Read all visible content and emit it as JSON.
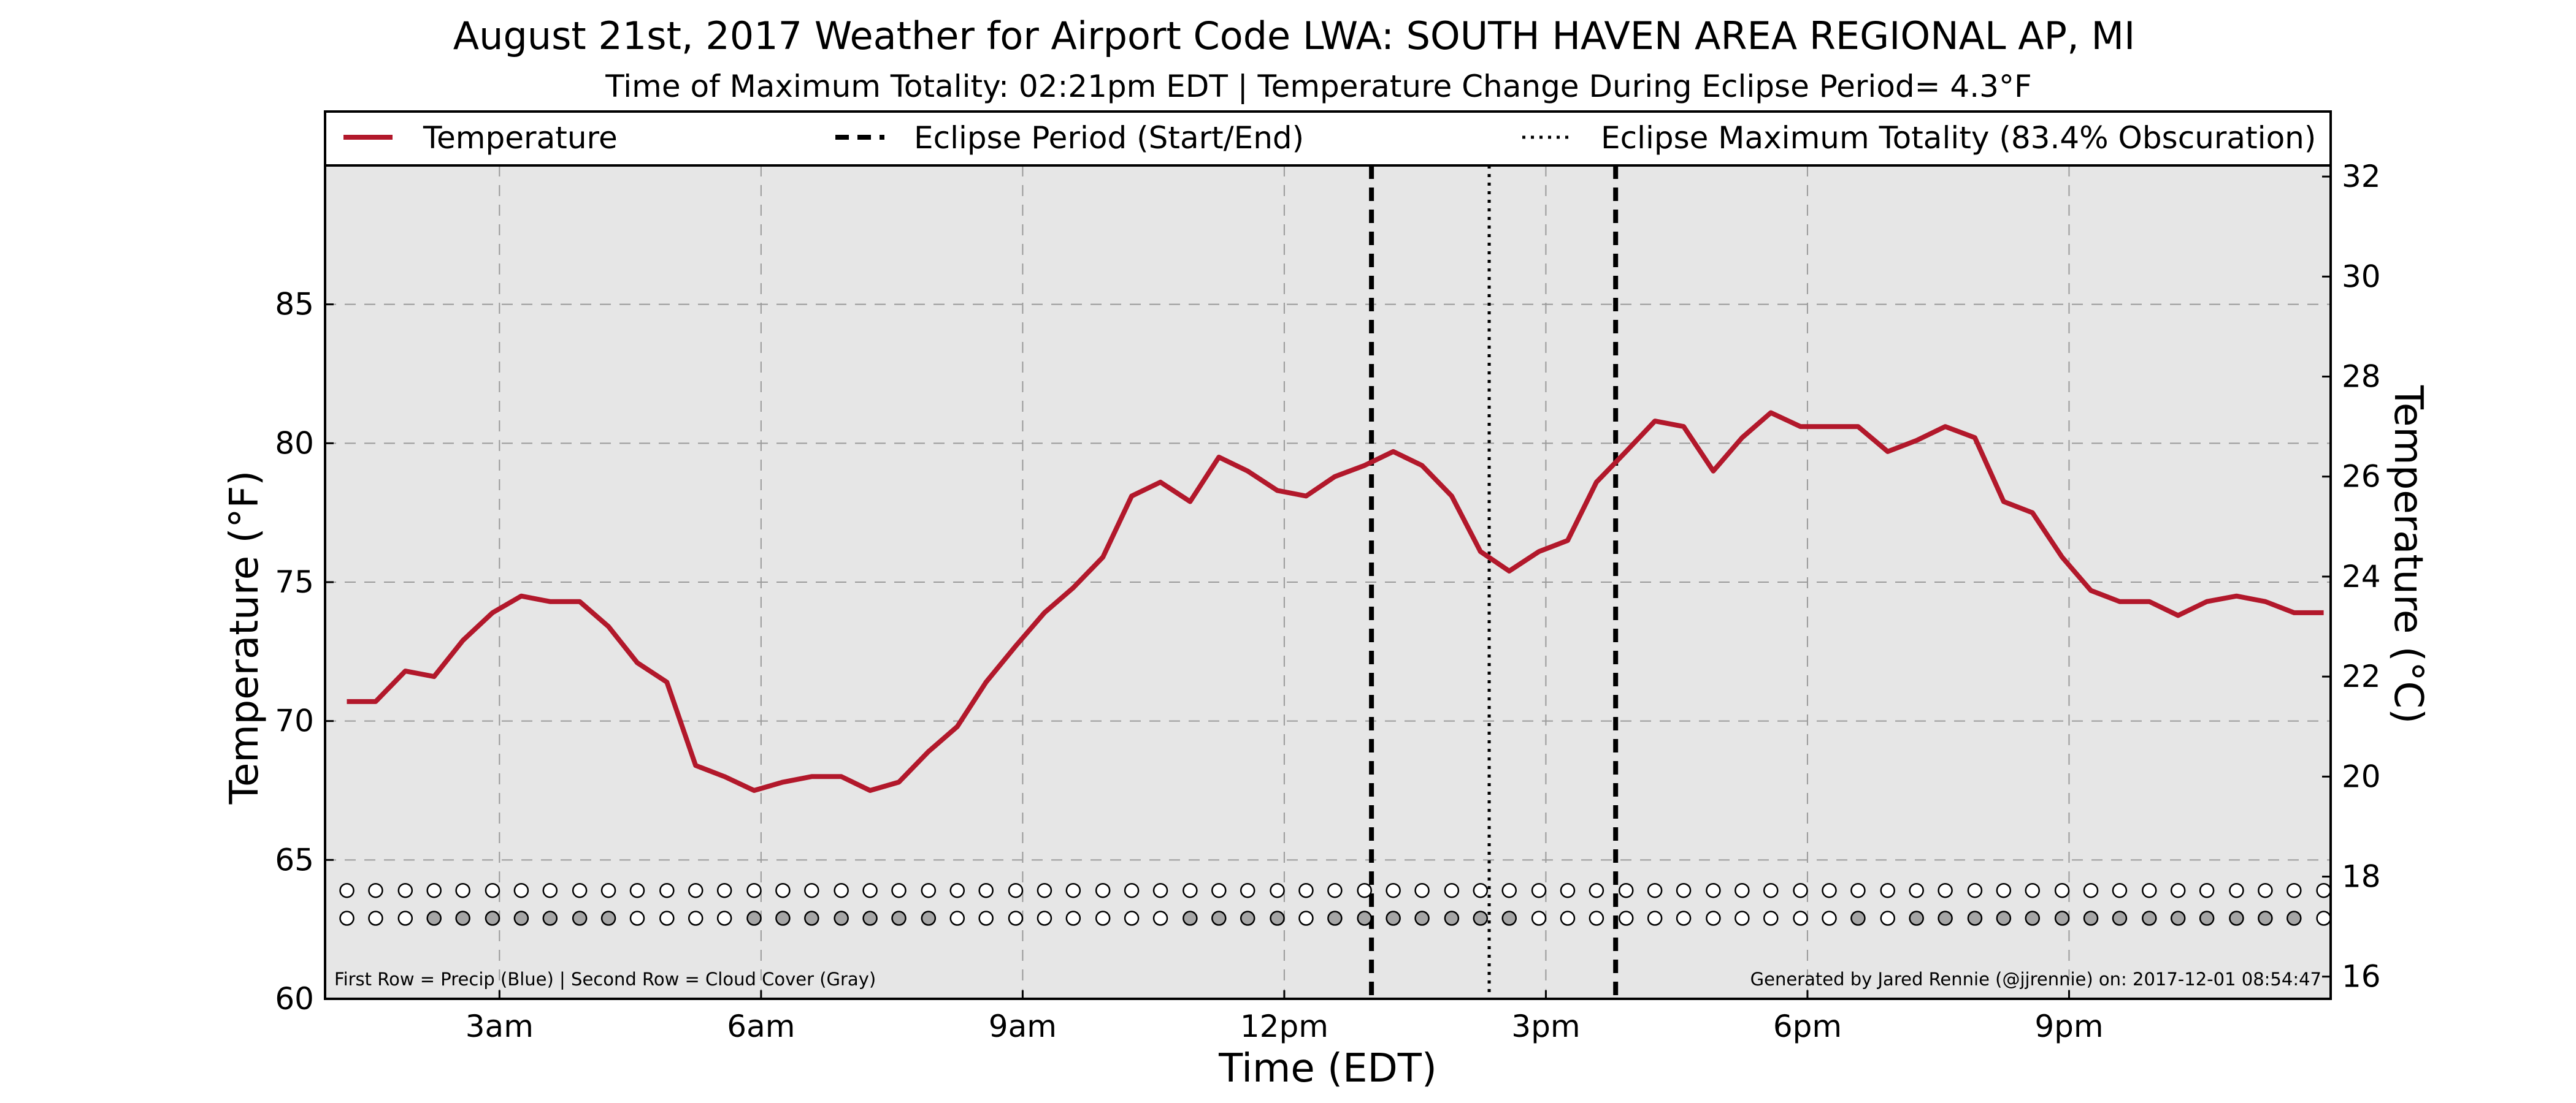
{
  "chart_data": {
    "type": "line",
    "title": "August 21st, 2017 Weather for Airport Code LWA: SOUTH HAVEN AREA REGIONAL AP, MI",
    "subtitle": "Time of Maximum Totality: 02:21pm EDT | Temperature Change During Eclipse Period= 4.3°F",
    "xlabel": "Time (EDT)",
    "ylabel_left": "Temperature (°F)",
    "ylabel_right": "Temperature (°C)",
    "x_unit": "hour of day (EDT)",
    "xlim": [
      1,
      24
    ],
    "x_ticks": [
      {
        "x": 3,
        "label": "3am"
      },
      {
        "x": 6,
        "label": "6am"
      },
      {
        "x": 9,
        "label": "9am"
      },
      {
        "x": 12,
        "label": "12pm"
      },
      {
        "x": 15,
        "label": "3pm"
      },
      {
        "x": 18,
        "label": "6pm"
      },
      {
        "x": 21,
        "label": "9pm"
      }
    ],
    "ylim": [
      60,
      90
    ],
    "y_ticks": [
      60,
      65,
      70,
      75,
      80,
      85
    ],
    "y2_ticks": [
      16,
      18,
      20,
      22,
      24,
      26,
      28,
      30,
      32
    ],
    "grid": true,
    "legend_position": "top (full width, above plot)",
    "legend": {
      "temperature": "Temperature",
      "eclipse_period": "Eclipse Period (Start/End)",
      "max_totality": "Eclipse Maximum Totality (83.4% Obscuration)"
    },
    "eclipse_start": 13.0,
    "eclipse_end": 15.8,
    "max_totality": 14.35,
    "series": [
      {
        "name": "Temperature",
        "color": "#b2182b",
        "x": [
          1.25,
          1.58,
          1.92,
          2.25,
          2.58,
          2.92,
          3.25,
          3.58,
          3.92,
          4.25,
          4.58,
          4.92,
          5.25,
          5.58,
          5.92,
          6.25,
          6.58,
          6.92,
          7.25,
          7.58,
          7.92,
          8.25,
          8.58,
          8.92,
          9.25,
          9.58,
          9.92,
          10.25,
          10.58,
          10.92,
          11.25,
          11.58,
          11.92,
          12.25,
          12.58,
          12.92,
          13.25,
          13.58,
          13.92,
          14.25,
          14.58,
          14.92,
          15.25,
          15.58,
          15.92,
          16.25,
          16.58,
          16.92,
          17.25,
          17.58,
          17.92,
          18.25,
          18.58,
          18.92,
          19.25,
          19.58,
          19.92,
          20.25,
          20.58,
          20.92,
          21.25,
          21.58,
          21.92,
          22.25,
          22.58,
          22.92,
          23.25,
          23.58,
          23.92
        ],
        "values": [
          70.7,
          70.7,
          71.8,
          71.6,
          72.9,
          73.9,
          74.5,
          74.3,
          74.3,
          73.4,
          72.1,
          71.4,
          68.4,
          68.0,
          67.5,
          67.8,
          68.0,
          68.0,
          67.5,
          67.8,
          68.9,
          69.8,
          71.4,
          72.7,
          73.9,
          74.8,
          75.9,
          78.1,
          78.6,
          77.9,
          79.5,
          79.0,
          78.3,
          78.1,
          78.8,
          79.2,
          79.7,
          79.2,
          78.1,
          76.1,
          75.4,
          76.1,
          76.5,
          78.6,
          79.7,
          80.8,
          80.6,
          79.0,
          80.2,
          81.1,
          80.6,
          80.6,
          80.6,
          79.7,
          80.1,
          80.6,
          80.2,
          77.9,
          77.5,
          75.9,
          74.7,
          74.3,
          74.3,
          73.8,
          74.3,
          74.5,
          74.3,
          73.9,
          73.9
        ]
      }
    ],
    "precip_row": {
      "name": "First Row = Precip (Blue)",
      "y": 63.9,
      "filled": []
    },
    "cloud_row": {
      "name": "Second Row = Cloud Cover (Gray)",
      "y": 62.9,
      "fill_color": "#a6a6a6",
      "filled": [
        3,
        4,
        5,
        6,
        7,
        8,
        9,
        14,
        15,
        16,
        17,
        18,
        19,
        20,
        29,
        30,
        31,
        32,
        34,
        35,
        36,
        37,
        38,
        39,
        40,
        52,
        54,
        55,
        56,
        57,
        58,
        59,
        60,
        61,
        62,
        63,
        64,
        65,
        66,
        67
      ]
    },
    "footnote_left": "First Row = Precip (Blue) | Second Row = Cloud Cover (Gray)",
    "footnote_right": "Generated by Jared Rennie (@jjrennie) on: 2017-12-01 08:54:47"
  }
}
